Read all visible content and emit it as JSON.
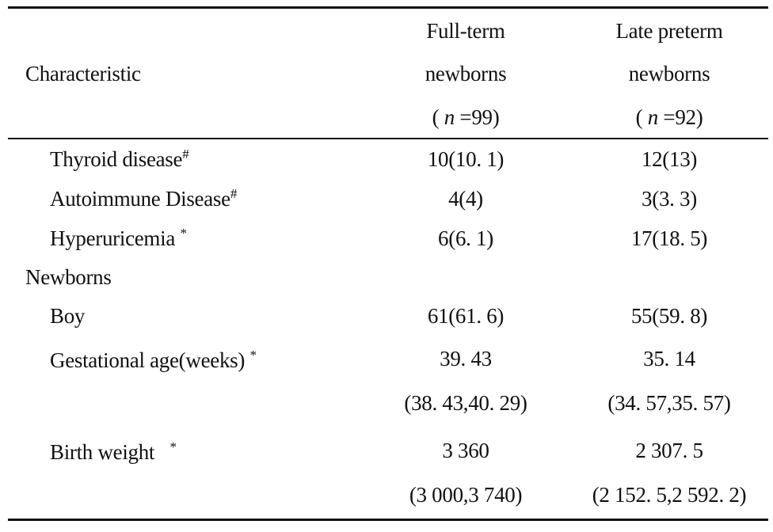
{
  "table": {
    "header": {
      "characteristic": "Characteristic",
      "col1": {
        "line1": "Full-term",
        "line2": "newborns",
        "n_open": "( ",
        "n_var": "n",
        "n_rest": " =99)"
      },
      "col2": {
        "line1": "Late preterm",
        "line2": "newborns",
        "n_open": "( ",
        "n_var": "n",
        "n_rest": " =92)"
      }
    },
    "rows": [
      {
        "label": "Thyroid disease",
        "mark": "#",
        "full_term": "10(10. 1)",
        "late_preterm": "12(13)"
      },
      {
        "label": "Autoimmune Disease",
        "mark": "#",
        "full_term": "4(4)",
        "late_preterm": "3(3. 3)"
      },
      {
        "label": "Hyperuricemia",
        "mark": "*",
        "full_term": "6(6. 1)",
        "late_preterm": "17(18. 5)"
      },
      {
        "section": "Newborns"
      },
      {
        "label": "Boy",
        "full_term": "61(61. 6)",
        "late_preterm": "55(59. 8)"
      },
      {
        "label": "Gestational age(weeks)",
        "mark": "*",
        "full_term": "39. 43",
        "full_term_range": "(38. 43,40. 29)",
        "late_preterm": "35. 14",
        "late_preterm_range": "(34. 57,35. 57)"
      },
      {
        "label": "Birth weight",
        "mark": "*",
        "full_term": "3 360",
        "full_term_range": "(3 000,3 740)",
        "late_preterm": "2 307. 5",
        "late_preterm_range": "(2 152. 5,2 592. 2)"
      }
    ]
  }
}
